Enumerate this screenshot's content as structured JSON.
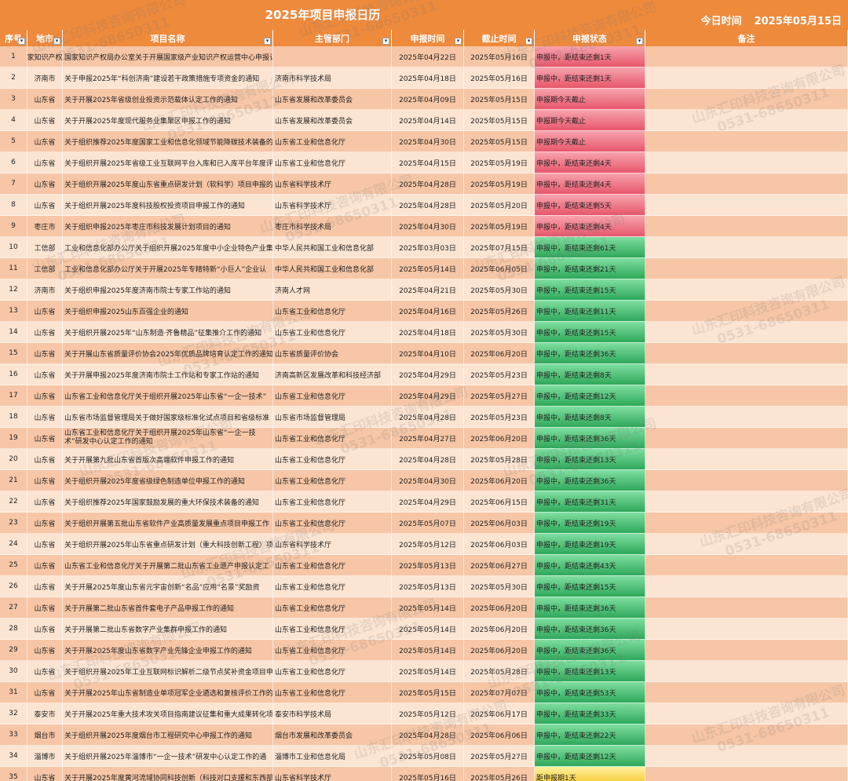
{
  "title": "2025年项目申报日历",
  "today_label": "今日时间",
  "today_date": "2025年05月15日",
  "columns": [
    "序号",
    "地市",
    "项目名称",
    "主管部门",
    "申报时间",
    "截止时间",
    "申报状态",
    "备注"
  ],
  "watermark": {
    "line1": "山东汇印科技咨询有限公司",
    "line2": "0531-68650311"
  },
  "colors": {
    "header": "#ee8a3c",
    "row_odd": "#f6c6a6",
    "row_even": "#fce4d2",
    "status_red": "#e7576b",
    "status_green": "#2fa85a",
    "status_yellow": "#f3c21a"
  },
  "rows": [
    {
      "no": "1",
      "city": "家知识产权",
      "name": "国家知识产权局办公室关于开展国家级产业知识产权运营中心申报认定工作的通知",
      "dept": "",
      "start": "2025年04月22日",
      "end": "2025年05月16日",
      "status": "申报中，距结束还剩1天",
      "status_type": "red",
      "note": ""
    },
    {
      "no": "2",
      "city": "济南市",
      "name": "关于申报2025年“科创济南”建设若干政策措施专项资金的通知",
      "dept": "济南市科学技术局",
      "start": "2025年04月18日",
      "end": "2025年05月16日",
      "status": "申报中，距结束还剩1天",
      "status_type": "red",
      "note": ""
    },
    {
      "no": "3",
      "city": "山东省",
      "name": "关于开展2025年省级创业投资示范载体认定工作的通知",
      "dept": "山东省发展和改革委员会",
      "start": "2025年04月09日",
      "end": "2025年05月15日",
      "status": "申报期今天截止",
      "status_type": "red",
      "note": ""
    },
    {
      "no": "4",
      "city": "山东省",
      "name": "关于开展2025年度现代服务业集聚区申报工作的通知",
      "dept": "山东省发展和改革委员会",
      "start": "2025年04月14日",
      "end": "2025年05月15日",
      "status": "申报期今天截止",
      "status_type": "red",
      "note": ""
    },
    {
      "no": "5",
      "city": "山东省",
      "name": "关于组织推荐2025年度国家工业和信息化领域节能降碳技术装备的通知",
      "dept": "山东省工业和信息化厅",
      "start": "2025年04月30日",
      "end": "2025年05月15日",
      "status": "申报期今天截止",
      "status_type": "red",
      "note": ""
    },
    {
      "no": "6",
      "city": "山东省",
      "name": "关于组织开展2025年省级工业互联网平台入库和已入库平台年度评",
      "dept": "山东省工业和信息化厅",
      "start": "2025年04月15日",
      "end": "2025年05月19日",
      "status": "申报中，距结束还剩4天",
      "status_type": "red",
      "note": ""
    },
    {
      "no": "7",
      "city": "山东省",
      "name": "关于组织开展2025年度山东省重点研发计划（软科学）项目申报的",
      "dept": "山东省科学技术厅",
      "start": "2025年04月28日",
      "end": "2025年05月19日",
      "status": "申报中，距结束还剩4天",
      "status_type": "red",
      "note": ""
    },
    {
      "no": "8",
      "city": "山东省",
      "name": "关于组织开展2025年度科技股权投资项目申报工作的通知",
      "dept": "山东省科学技术厅",
      "start": "2025年04月28日",
      "end": "2025年05月20日",
      "status": "申报中，距结束还剩5天",
      "status_type": "red",
      "note": ""
    },
    {
      "no": "9",
      "city": "枣庄市",
      "name": "关于组织申报2025年枣庄市科技发展计划项目的通知",
      "dept": "枣庄市科学技术局",
      "start": "2025年04月30日",
      "end": "2025年05月19日",
      "status": "申报中，距结束还剩4天",
      "status_type": "red",
      "note": ""
    },
    {
      "no": "10",
      "city": "工信部",
      "name": "工业和信息化部办公厅关于组织开展2025年度中小企业特色产业集",
      "dept": "中华人民共和国工业和信息化部",
      "start": "2025年03月03日",
      "end": "2025年07月15日",
      "status": "申报中，距结束还剩61天",
      "status_type": "green",
      "note": ""
    },
    {
      "no": "11",
      "city": "工信部",
      "name": "工业和信息化部办公厅关于开展2025年专精特新“小巨人”企业认",
      "dept": "中华人民共和国工业和信息化部",
      "start": "2025年05月14日",
      "end": "2025年06月05日",
      "status": "申报中，距结束还剩21天",
      "status_type": "green",
      "note": ""
    },
    {
      "no": "12",
      "city": "济南市",
      "name": "关于组织申报2025年度济南市院士专家工作站的通知",
      "dept": "济南人才网",
      "start": "2025年04月21日",
      "end": "2025年05月30日",
      "status": "申报中，距结束还剩15天",
      "status_type": "green",
      "note": ""
    },
    {
      "no": "13",
      "city": "山东省",
      "name": "关于组织申报2025山东百强企业的通知",
      "dept": "山东省工业和信息化厅",
      "start": "2025年04月16日",
      "end": "2025年05月26日",
      "status": "申报中，距结束还剩11天",
      "status_type": "green",
      "note": ""
    },
    {
      "no": "14",
      "city": "山东省",
      "name": "关于组织开展2025年“山东制造·齐鲁精品”征集推介工作的通知",
      "dept": "山东省工业和信息化厅",
      "start": "2025年04月18日",
      "end": "2025年05月30日",
      "status": "申报中，距结束还剩15天",
      "status_type": "green",
      "note": ""
    },
    {
      "no": "15",
      "city": "山东省",
      "name": "关于开展山东省质量评价协会2025年优质品牌培育认定工作的通知",
      "dept": "山东省质量评价协会",
      "start": "2025年04月10日",
      "end": "2025年06月20日",
      "status": "申报中，距结束还剩36天",
      "status_type": "green",
      "note": ""
    },
    {
      "no": "16",
      "city": "山东省",
      "name": "关于开展申报2025年度济南市院士工作站和专家工作站的通知",
      "dept": "济南高新区发展改革和科技经济部",
      "start": "2025年04月29日",
      "end": "2025年05月23日",
      "status": "申报中，距结束还剩8天",
      "status_type": "green",
      "note": ""
    },
    {
      "no": "17",
      "city": "山东省",
      "name": "山东省工业和信息化厅关于组织开展2025年山东省“一企一技术”",
      "dept": "山东省工业和信息化厅",
      "start": "2025年04月29日",
      "end": "2025年05月27日",
      "status": "申报中，距结束还剩12天",
      "status_type": "green",
      "note": ""
    },
    {
      "no": "18",
      "city": "山东省",
      "name": "山东省市场监督管理局关于做好国家级标准化试点项目和省级标准",
      "dept": "山东省市场监督管理局",
      "start": "2025年04月28日",
      "end": "2025年05月23日",
      "status": "申报中，距结束还剩8天",
      "status_type": "green",
      "note": ""
    },
    {
      "no": "19",
      "city": "山东省",
      "name": "山东省工业和信息化厅关于组织开展2025年山东省“一企一技术”研发中心认定工作的通知",
      "dept": "山东省工业和信息化厅",
      "start": "2025年04月27日",
      "end": "2025年06月20日",
      "status": "申报中，距结束还剩36天",
      "status_type": "green",
      "note": ""
    },
    {
      "no": "20",
      "city": "山东省",
      "name": "关于开展第九批山东省首版次高端软件申报工作的通知",
      "dept": "山东省工业和信息化厅",
      "start": "2025年04月28日",
      "end": "2025年05月28日",
      "status": "申报中，距结束还剩13天",
      "status_type": "green",
      "note": ""
    },
    {
      "no": "21",
      "city": "山东省",
      "name": "关于组织开展2025年度省级绿色制造单位申报工作的通知",
      "dept": "山东省工业和信息化厅",
      "start": "2025年04月30日",
      "end": "2025年06月20日",
      "status": "申报中，距结束还剩36天",
      "status_type": "green",
      "note": ""
    },
    {
      "no": "22",
      "city": "山东省",
      "name": "关于组织推荐2025年国家鼓励发展的重大环保技术装备的通知",
      "dept": "山东省工业和信息化厅",
      "start": "2025年04月29日",
      "end": "2025年06月15日",
      "status": "申报中，距结束还剩31天",
      "status_type": "green",
      "note": ""
    },
    {
      "no": "23",
      "city": "山东省",
      "name": "关于组织开展第五批山东省软件产业高质量发展重点项目申报工作",
      "dept": "山东省工业和信息化厅",
      "start": "2025年05月07日",
      "end": "2025年06月03日",
      "status": "申报中，距结束还剩19天",
      "status_type": "green",
      "note": ""
    },
    {
      "no": "24",
      "city": "山东省",
      "name": "关于组织开展2025年山东省重点研发计划（重大科技创新工程）项",
      "dept": "山东省科学技术厅",
      "start": "2025年05月12日",
      "end": "2025年06月03日",
      "status": "申报中，距结束还剩19天",
      "status_type": "green",
      "note": ""
    },
    {
      "no": "25",
      "city": "山东省",
      "name": "山东省工业和信息化厅关于开展第二批山东省工业遗产申报认定工",
      "dept": "山东省工业和信息化厅",
      "start": "2025年05月13日",
      "end": "2025年06月27日",
      "status": "申报中，距结束还剩43天",
      "status_type": "green",
      "note": ""
    },
    {
      "no": "26",
      "city": "山东省",
      "name": "关于开展2025年度山东省元宇宙创新“名品”应用“名景”奖励资",
      "dept": "山东省工业和信息化厅",
      "start": "2025年05月13日",
      "end": "2025年05月30日",
      "status": "申报中，距结束还剩15天",
      "status_type": "green",
      "note": ""
    },
    {
      "no": "27",
      "city": "山东省",
      "name": "关于开展第二批山东省首件套电子产品申报工作的通知",
      "dept": "山东省工业和信息化厅",
      "start": "2025年05月14日",
      "end": "2025年06月20日",
      "status": "申报中，距结束还剩36天",
      "status_type": "green",
      "note": ""
    },
    {
      "no": "28",
      "city": "山东省",
      "name": "关于开展第二批山东省数字产业集群申报工作的通知",
      "dept": "山东省工业和信息化厅",
      "start": "2025年05月14日",
      "end": "2025年06月20日",
      "status": "申报中，距结束还剩36天",
      "status_type": "green",
      "note": ""
    },
    {
      "no": "29",
      "city": "山东省",
      "name": "关于开展2025年度山东省数字产业先锋企业申报工作的通知",
      "dept": "山东省工业和信息化厅",
      "start": "2025年05月14日",
      "end": "2025年06月20日",
      "status": "申报中，距结束还剩36天",
      "status_type": "green",
      "note": ""
    },
    {
      "no": "30",
      "city": "山东省",
      "name": "关于组织开展2025年工业互联网标识解析二级节点奖补资金项目申",
      "dept": "山东省工业和信息化厅",
      "start": "2025年05月14日",
      "end": "2025年05月28日",
      "status": "申报中，距结束还剩13天",
      "status_type": "green",
      "note": ""
    },
    {
      "no": "31",
      "city": "山东省",
      "name": "关于开展2025年山东省制造业单项冠军企业遴选和复核评价工作的",
      "dept": "山东省工业和信息化厅",
      "start": "2025年05月15日",
      "end": "2025年07月07日",
      "status": "申报中，距结束还剩53天",
      "status_type": "green",
      "note": ""
    },
    {
      "no": "32",
      "city": "泰安市",
      "name": "关于开展2025年重大技术攻关项目指南建议征集和重大成果转化项",
      "dept": "泰安市科学技术局",
      "start": "2025年05月12日",
      "end": "2025年06月17日",
      "status": "申报中，距结束还剩33天",
      "status_type": "green",
      "note": ""
    },
    {
      "no": "33",
      "city": "烟台市",
      "name": "关于组织开展2025年度烟台市工程研究中心申报工作的通知",
      "dept": "烟台市发展和改革委员会",
      "start": "2025年04月28日",
      "end": "2025年06月06日",
      "status": "申报中，距结束还剩22天",
      "status_type": "green",
      "note": ""
    },
    {
      "no": "34",
      "city": "淄博市",
      "name": "关于组织开展2025年淄博市“一企一技术”研发中心认定工作的通",
      "dept": "淄博市工业和信息化局",
      "start": "2025年05月08日",
      "end": "2025年05月27日",
      "status": "申报中，距结束还剩12天",
      "status_type": "green",
      "note": ""
    },
    {
      "no": "35",
      "city": "山东省",
      "name": "关于开展2025年度黄河流域协同科技创新（科技对口支援和东西部",
      "dept": "山东省科学技术厅",
      "start": "2025年05月16日",
      "end": "2025年05月26日",
      "status": "距申报期1天",
      "status_type": "yellow",
      "note": ""
    }
  ]
}
